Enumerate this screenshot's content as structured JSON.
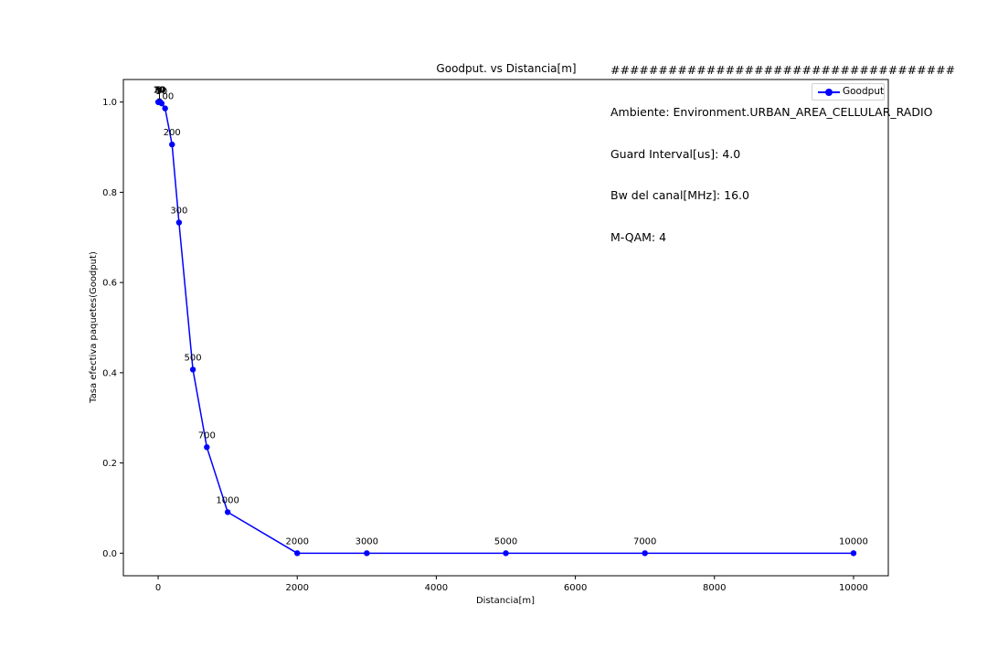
{
  "info_lines": [
    "####################################",
    "Ambiente: Environment.URBAN_AREA_CELLULAR_RADIO",
    "Guard Interval[us]: 4.0",
    "Bw del canal[MHz]: 16.0",
    "M-QAM: 4"
  ],
  "chart_data": {
    "type": "line",
    "title": "Goodput. vs Distancia[m]",
    "xlabel": "Distancia[m]",
    "ylabel": "Tasa efectiva paquetes(Goodput)",
    "xlim": [
      -500,
      10500
    ],
    "ylim": [
      -0.05,
      1.05
    ],
    "xticks": [
      0,
      2000,
      4000,
      6000,
      8000,
      10000
    ],
    "yticks": [
      0.0,
      0.2,
      0.4,
      0.6,
      0.8,
      1.0
    ],
    "grid": false,
    "legend_position": "top-right",
    "series": [
      {
        "name": "Goodput",
        "color": "#0000ff",
        "x": [
          1,
          5,
          10,
          20,
          30,
          50,
          100,
          200,
          300,
          500,
          700,
          1000,
          2000,
          3000,
          5000,
          7000,
          10000
        ],
        "y": [
          1.0,
          1.0,
          1.0,
          1.0,
          1.0,
          0.997,
          0.986,
          0.906,
          0.733,
          0.407,
          0.235,
          0.091,
          0.0,
          0.0,
          0.0,
          0.0,
          0.0
        ],
        "point_labels": [
          "1",
          "5",
          "10",
          "20",
          "30",
          "50",
          "100",
          "200",
          "300",
          "500",
          "700",
          "1000",
          "2000",
          "3000",
          "5000",
          "7000",
          "10000"
        ]
      }
    ]
  }
}
